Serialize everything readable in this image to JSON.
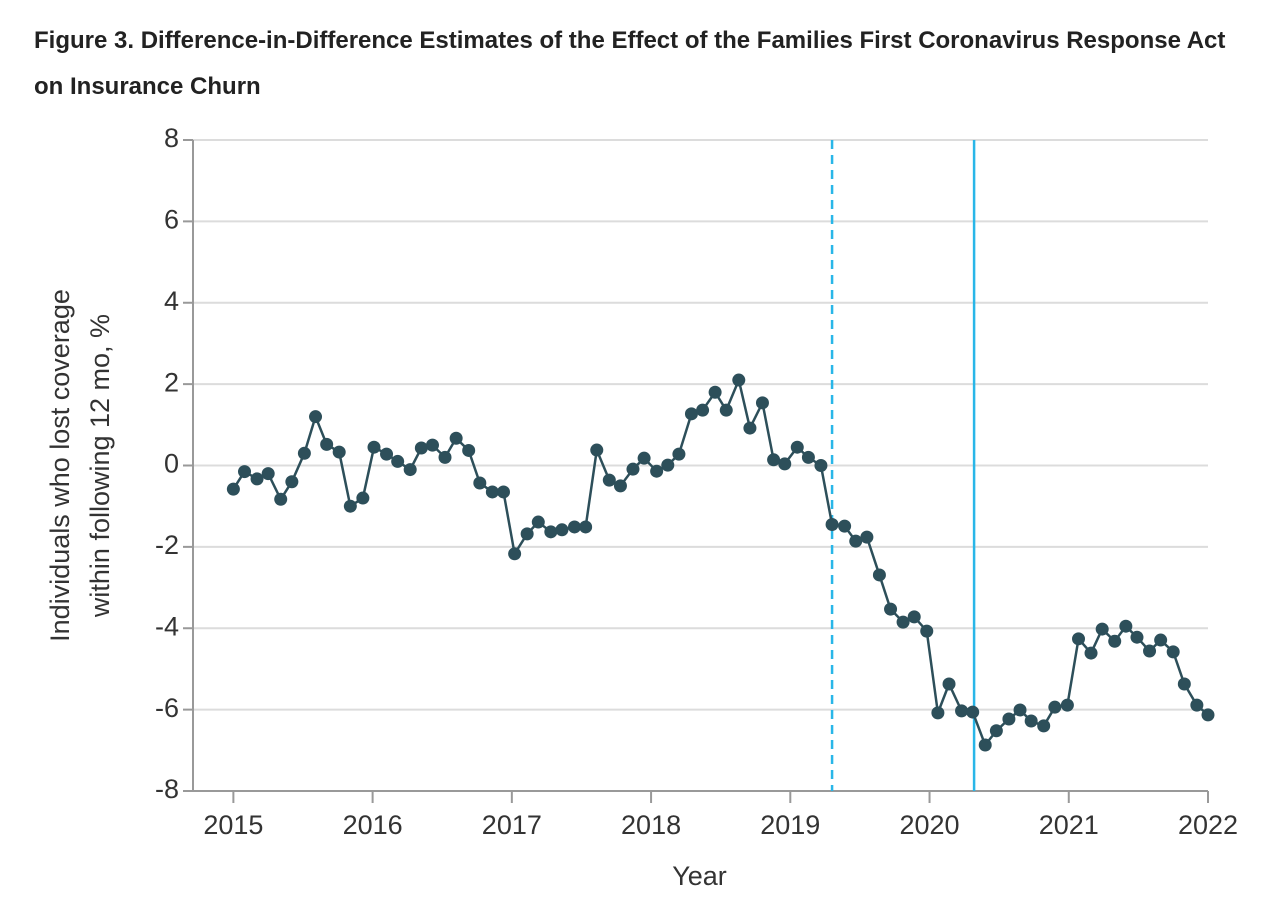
{
  "chart_data": {
    "type": "line",
    "title": "Figure 3.  Difference-in-Difference Estimates of the Effect of the Families First Coronavirus Response Act on Insurance Churn",
    "ylabel": [
      "Individuals who lost coverage",
      "within following 12 mo, %"
    ],
    "xlabel": "Year",
    "x": [
      2015.0,
      2015.08,
      2015.17,
      2015.25,
      2015.34,
      2015.42,
      2015.51,
      2015.59,
      2015.67,
      2015.76,
      2015.84,
      2015.93,
      2016.01,
      2016.1,
      2016.18,
      2016.27,
      2016.35,
      2016.43,
      2016.52,
      2016.6,
      2016.69,
      2016.77,
      2016.86,
      2016.94,
      2017.02,
      2017.11,
      2017.19,
      2017.28,
      2017.36,
      2017.45,
      2017.53,
      2017.61,
      2017.7,
      2017.78,
      2017.87,
      2017.95,
      2018.04,
      2018.12,
      2018.2,
      2018.29,
      2018.37,
      2018.46,
      2018.54,
      2018.63,
      2018.71,
      2018.8,
      2018.88,
      2018.96,
      2019.05,
      2019.13,
      2019.22,
      2019.3,
      2019.39,
      2019.47,
      2019.55,
      2019.64,
      2019.72,
      2019.81,
      2019.89,
      2019.98,
      2020.06,
      2020.14,
      2020.23,
      2020.31,
      2020.4,
      2020.48,
      2020.57,
      2020.65,
      2020.73,
      2020.82,
      2020.9,
      2020.99,
      2021.07,
      2021.16,
      2021.24,
      2021.33,
      2021.41,
      2021.49,
      2021.58,
      2021.66,
      2021.75,
      2021.83,
      2021.92,
      2022.0
    ],
    "series": [
      {
        "color": "#2d4f5a",
        "values": [
          -0.58,
          -0.15,
          -0.33,
          -0.2,
          -0.83,
          -0.4,
          0.3,
          1.2,
          0.52,
          0.33,
          -1.0,
          -0.8,
          0.45,
          0.28,
          0.1,
          -0.1,
          0.43,
          0.5,
          0.2,
          0.67,
          0.37,
          -0.43,
          -0.65,
          -0.65,
          -2.17,
          -1.68,
          -1.39,
          -1.63,
          -1.58,
          -1.51,
          -1.51,
          0.38,
          -0.36,
          -0.5,
          -0.09,
          0.18,
          -0.14,
          0.01,
          0.28,
          1.27,
          1.36,
          1.8,
          1.36,
          2.1,
          0.92,
          1.54,
          0.14,
          0.04,
          0.45,
          0.2,
          0.0,
          -1.45,
          -1.49,
          -1.86,
          -1.76,
          -2.69,
          -3.53,
          -3.85,
          -3.72,
          -4.07,
          -6.08,
          -5.37,
          -6.03,
          -6.06,
          -6.87,
          -6.52,
          -6.23,
          -6.01,
          -6.28,
          -6.4,
          -5.94,
          -5.89,
          -4.26,
          -4.61,
          -4.02,
          -4.32,
          -3.95,
          -4.22,
          -4.56,
          -4.29,
          -4.58,
          -5.37,
          -5.89,
          -6.13
        ]
      }
    ],
    "reference_lines": [
      {
        "x": 2019.3,
        "style": "dashed",
        "color": "#29b6e8"
      },
      {
        "x": 2020.32,
        "style": "solid",
        "color": "#29b6e8"
      }
    ],
    "xlim": [
      2014.71,
      2022
    ],
    "xticks": [
      2015,
      2016,
      2017,
      2018,
      2019,
      2020,
      2021,
      2022
    ],
    "ylim": [
      -8,
      8
    ],
    "yticks": [
      -8,
      -6,
      -4,
      -2,
      0,
      2,
      4,
      6,
      8
    ],
    "grid": true
  }
}
